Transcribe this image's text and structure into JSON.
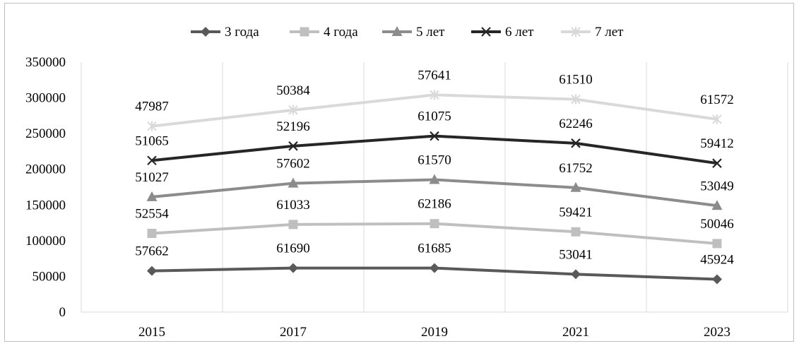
{
  "chart_data": {
    "type": "line",
    "stacked": true,
    "x": [
      "2015",
      "2017",
      "2019",
      "2021",
      "2023"
    ],
    "ylim": [
      0,
      350000
    ],
    "yticks": [
      0,
      50000,
      100000,
      150000,
      200000,
      250000,
      300000,
      350000
    ],
    "grid": "vertical",
    "legend": "top",
    "series": [
      {
        "name": "3 года",
        "color": "#595959",
        "marker": "diamond",
        "values": [
          57662,
          61690,
          61685,
          53041,
          45924
        ]
      },
      {
        "name": "4 года",
        "color": "#bfbfbf",
        "marker": "square",
        "values": [
          52554,
          61033,
          62186,
          59421,
          50046
        ]
      },
      {
        "name": "5 лет",
        "color": "#8c8c8c",
        "marker": "triangle",
        "values": [
          51027,
          57602,
          61570,
          61752,
          53049
        ]
      },
      {
        "name": "6 лет",
        "color": "#262626",
        "marker": "x",
        "values": [
          51065,
          52196,
          61075,
          62246,
          59412
        ]
      },
      {
        "name": "7 лет",
        "color": "#d9d9d9",
        "marker": "asterisk",
        "values": [
          47987,
          50384,
          57641,
          61510,
          61572
        ]
      }
    ]
  }
}
